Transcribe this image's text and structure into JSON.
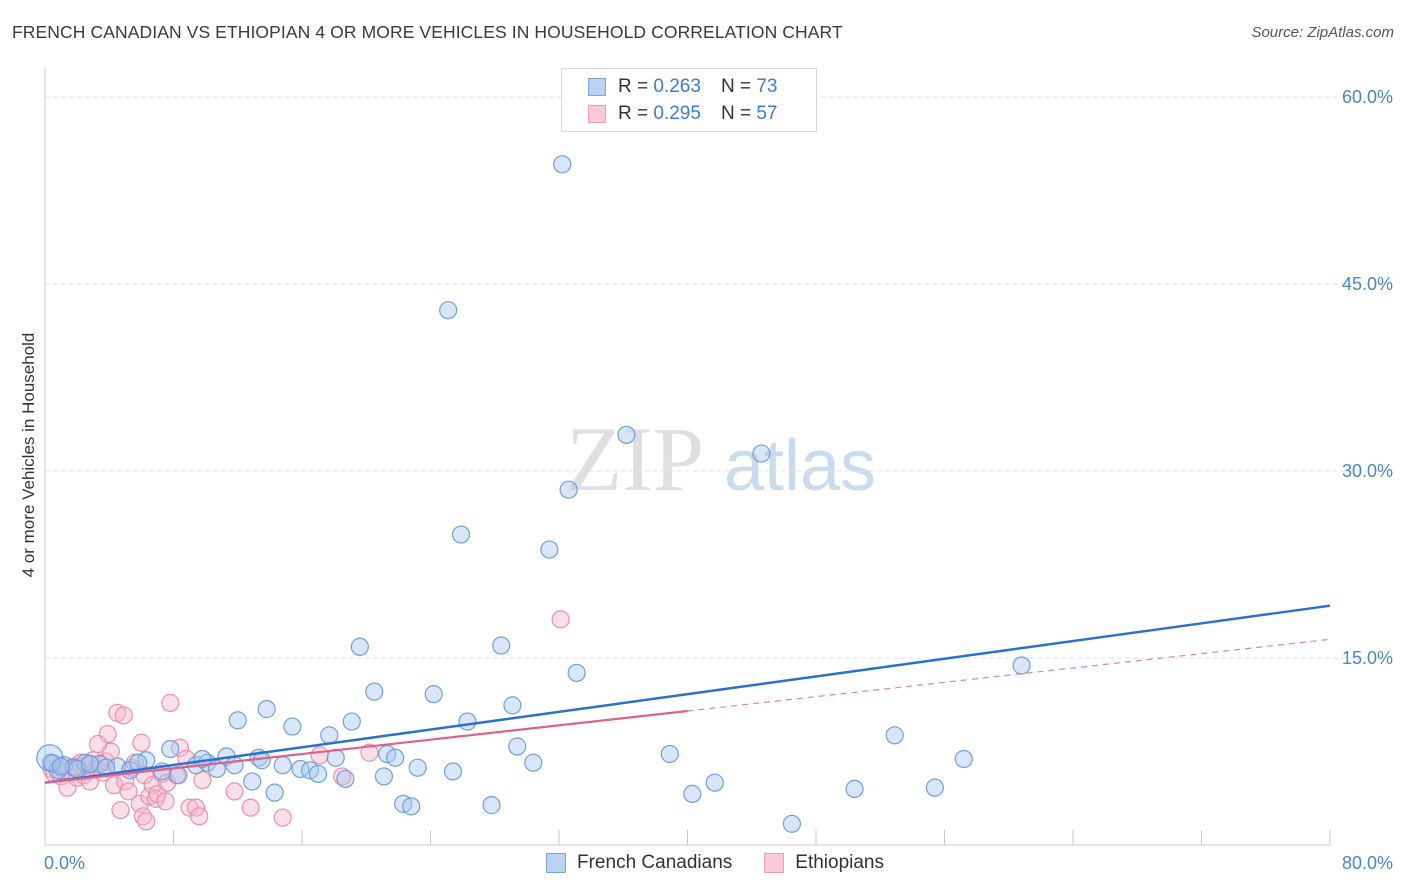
{
  "title": "FRENCH CANADIAN VS ETHIOPIAN 4 OR MORE VEHICLES IN HOUSEHOLD CORRELATION CHART",
  "source": "Source: ZipAtlas.com",
  "watermark": {
    "zip": "ZIP",
    "atlas": "atlas"
  },
  "legend": {
    "r_label": "R =",
    "n_label": "N =",
    "series": [
      {
        "r": "0.263",
        "n": "73"
      },
      {
        "r": "0.295",
        "n": "57"
      }
    ]
  },
  "colors": {
    "blue_fill": "#a9c8ee",
    "blue_stroke": "#6f9fdc",
    "blue_line": "#2a6fd1",
    "pink_fill": "#f6b9cc",
    "pink_stroke": "#ec8fac",
    "pink_line": "#e0608a",
    "grid": "#e2e2e2",
    "axis_text": "#4a86c8"
  },
  "chart_data": {
    "type": "scatter",
    "title": "FRENCH CANADIAN VS ETHIOPIAN 4 OR MORE VEHICLES IN HOUSEHOLD CORRELATION CHART",
    "xlabel": "",
    "ylabel": "4 or more Vehicles in Household",
    "xlim": [
      0,
      80
    ],
    "ylim": [
      0,
      60
    ],
    "x_tick_labels": [
      "0.0%",
      "80.0%"
    ],
    "y_ticks": [
      15,
      30,
      45,
      60
    ],
    "y_tick_labels": [
      "15.0%",
      "30.0%",
      "45.0%",
      "60.0%"
    ],
    "legend_position": "bottom-center",
    "series": [
      {
        "name": "French Canadians",
        "color": "blue",
        "trend": {
          "x": [
            0,
            80
          ],
          "y": [
            5.0,
            19.2
          ],
          "dashed_from": null
        },
        "points": [
          [
            0.3,
            7.0
          ],
          [
            0.5,
            6.5
          ],
          [
            0.8,
            6.0
          ],
          [
            1.2,
            6.4
          ],
          [
            1.8,
            6.2
          ],
          [
            2.5,
            6.6
          ],
          [
            3.4,
            6.5
          ],
          [
            4.5,
            6.3
          ],
          [
            5.3,
            6.0
          ],
          [
            6.3,
            6.8
          ],
          [
            7.8,
            7.7
          ],
          [
            8.3,
            5.6
          ],
          [
            9.4,
            6.4
          ],
          [
            10.1,
            6.6
          ],
          [
            10.7,
            6.1
          ],
          [
            11.3,
            7.1
          ],
          [
            11.8,
            6.4
          ],
          [
            12.0,
            10.0
          ],
          [
            12.9,
            5.1
          ],
          [
            13.3,
            7.0
          ],
          [
            13.8,
            10.9
          ],
          [
            14.3,
            4.2
          ],
          [
            14.8,
            6.4
          ],
          [
            15.4,
            9.5
          ],
          [
            15.9,
            6.1
          ],
          [
            16.5,
            6.0
          ],
          [
            17.0,
            5.7
          ],
          [
            17.7,
            8.8
          ],
          [
            18.1,
            7.0
          ],
          [
            18.7,
            5.3
          ],
          [
            19.1,
            9.9
          ],
          [
            19.6,
            15.9
          ],
          [
            20.5,
            12.3
          ],
          [
            21.1,
            5.5
          ],
          [
            21.3,
            7.3
          ],
          [
            21.8,
            7.0
          ],
          [
            22.3,
            3.3
          ],
          [
            22.8,
            3.1
          ],
          [
            23.2,
            6.2
          ],
          [
            24.2,
            12.1
          ],
          [
            25.1,
            42.9
          ],
          [
            25.4,
            5.9
          ],
          [
            25.9,
            24.9
          ],
          [
            26.3,
            9.9
          ],
          [
            27.8,
            3.2
          ],
          [
            28.4,
            16.0
          ],
          [
            29.1,
            11.2
          ],
          [
            29.4,
            7.9
          ],
          [
            30.4,
            6.6
          ],
          [
            31.4,
            23.7
          ],
          [
            32.2,
            54.6
          ],
          [
            32.6,
            28.5
          ],
          [
            33.1,
            13.8
          ],
          [
            36.2,
            32.9
          ],
          [
            38.9,
            7.3
          ],
          [
            40.3,
            4.1
          ],
          [
            41.7,
            5.0
          ],
          [
            44.6,
            31.4
          ],
          [
            46.5,
            1.7
          ],
          [
            50.4,
            4.5
          ],
          [
            52.9,
            8.8
          ],
          [
            55.4,
            4.6
          ],
          [
            57.2,
            6.9
          ],
          [
            60.8,
            14.4
          ],
          [
            0.4,
            6.6
          ],
          [
            1.0,
            6.3
          ],
          [
            2.0,
            6.1
          ],
          [
            2.8,
            6.5
          ],
          [
            3.8,
            6.2
          ],
          [
            5.8,
            6.6
          ],
          [
            7.3,
            5.9
          ],
          [
            9.8,
            6.9
          ],
          [
            13.5,
            6.8
          ]
        ]
      },
      {
        "name": "Ethiopians",
        "color": "pink",
        "trend": {
          "x": [
            0,
            80
          ],
          "y": [
            5.0,
            16.5
          ],
          "dashed_from": 40
        },
        "points": [
          [
            0.4,
            6.1
          ],
          [
            0.6,
            5.7
          ],
          [
            0.8,
            6.4
          ],
          [
            1.0,
            5.5
          ],
          [
            1.2,
            6.0
          ],
          [
            1.4,
            4.6
          ],
          [
            1.6,
            5.9
          ],
          [
            1.8,
            6.3
          ],
          [
            2.0,
            5.4
          ],
          [
            2.2,
            6.6
          ],
          [
            2.4,
            5.6
          ],
          [
            2.6,
            6.4
          ],
          [
            2.8,
            5.1
          ],
          [
            3.0,
            6.8
          ],
          [
            3.2,
            6.1
          ],
          [
            3.4,
            6.5
          ],
          [
            3.6,
            5.8
          ],
          [
            3.8,
            6.7
          ],
          [
            3.9,
            8.9
          ],
          [
            4.1,
            7.5
          ],
          [
            4.3,
            4.8
          ],
          [
            4.5,
            10.6
          ],
          [
            4.7,
            2.8
          ],
          [
            4.9,
            10.4
          ],
          [
            5.0,
            5.1
          ],
          [
            5.2,
            4.3
          ],
          [
            5.4,
            6.2
          ],
          [
            5.6,
            6.6
          ],
          [
            5.9,
            3.3
          ],
          [
            6.0,
            8.2
          ],
          [
            6.1,
            2.3
          ],
          [
            6.2,
            5.6
          ],
          [
            6.3,
            1.9
          ],
          [
            6.5,
            3.9
          ],
          [
            6.7,
            4.8
          ],
          [
            6.9,
            3.7
          ],
          [
            7.0,
            4.1
          ],
          [
            7.3,
            5.7
          ],
          [
            7.5,
            3.5
          ],
          [
            7.6,
            5.0
          ],
          [
            7.8,
            11.4
          ],
          [
            8.2,
            5.6
          ],
          [
            8.4,
            7.8
          ],
          [
            8.8,
            6.9
          ],
          [
            9.0,
            3.0
          ],
          [
            9.4,
            3.0
          ],
          [
            9.6,
            2.3
          ],
          [
            9.8,
            5.2
          ],
          [
            11.8,
            4.3
          ],
          [
            12.8,
            3.0
          ],
          [
            14.8,
            2.2
          ],
          [
            17.1,
            7.2
          ],
          [
            18.5,
            5.5
          ],
          [
            20.2,
            7.4
          ],
          [
            32.1,
            18.1
          ],
          [
            3.3,
            8.1
          ],
          [
            1.9,
            6.2
          ]
        ]
      }
    ]
  }
}
